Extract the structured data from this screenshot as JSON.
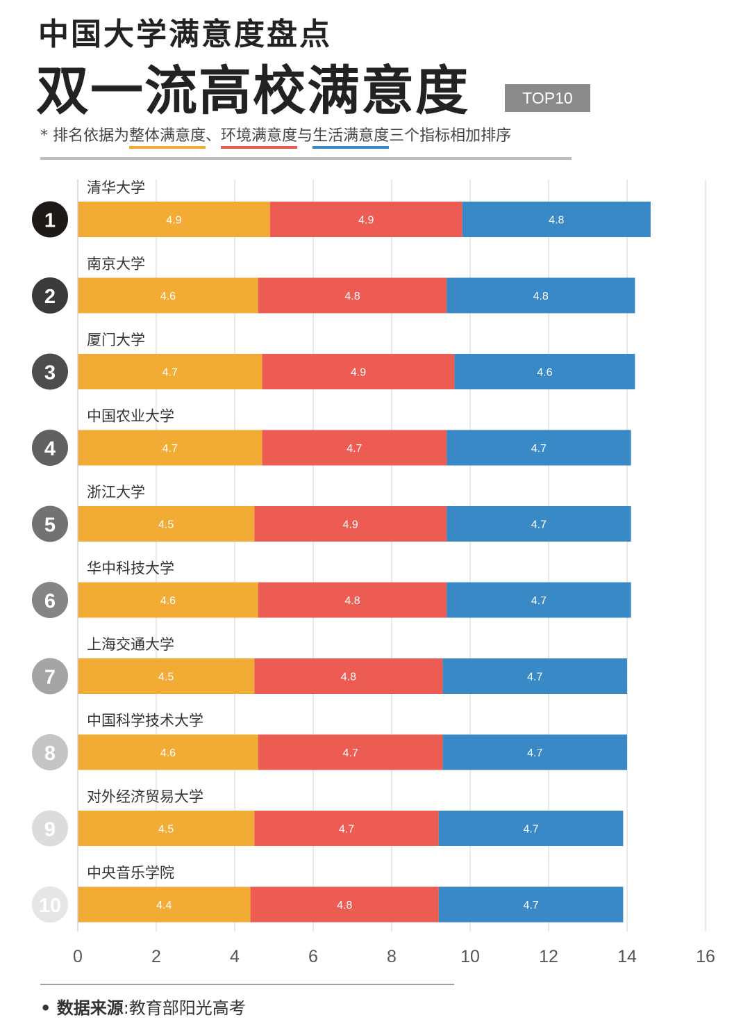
{
  "header": {
    "kicker": "中国大学满意度盘点",
    "title": "双一流高校满意度",
    "badge": "TOP10",
    "note_prefix": "* 排名依据为",
    "note_m1": "整体满意度",
    "note_sep1": "、",
    "note_m2": "环境满意度",
    "note_sep2": "与",
    "note_m3": "生活满意度",
    "note_suffix": "三个指标相加排序"
  },
  "colors": {
    "overall": "#f2ab35",
    "environment": "#ec5c53",
    "life": "#3889c6",
    "grid": "#e2e2e2",
    "axis": "#555555",
    "rank_circles": [
      "#1f1a17",
      "#3a3a3a",
      "#4d4d4d",
      "#606060",
      "#727272",
      "#858585",
      "#a4a4a4",
      "#c4c4c4",
      "#dcdcdc",
      "#e6e6e6"
    ]
  },
  "chart_data": {
    "type": "bar",
    "orientation": "horizontal",
    "stacked": true,
    "categories": [
      "清华大学",
      "南京大学",
      "厦门大学",
      "中国农业大学",
      "浙江大学",
      "华中科技大学",
      "上海交通大学",
      "中国科学技术大学",
      "对外经济贸易大学",
      "中央音乐学院"
    ],
    "ranks": [
      "1",
      "2",
      "3",
      "4",
      "5",
      "6",
      "7",
      "8",
      "9",
      "10"
    ],
    "series": [
      {
        "name": "整体满意度",
        "values": [
          4.9,
          4.6,
          4.7,
          4.7,
          4.5,
          4.6,
          4.5,
          4.6,
          4.5,
          4.4
        ]
      },
      {
        "name": "环境满意度",
        "values": [
          4.9,
          4.8,
          4.9,
          4.7,
          4.9,
          4.8,
          4.8,
          4.7,
          4.7,
          4.8
        ]
      },
      {
        "name": "生活满意度",
        "values": [
          4.8,
          4.8,
          4.6,
          4.7,
          4.7,
          4.7,
          4.7,
          4.7,
          4.7,
          4.7
        ]
      }
    ],
    "xlim": [
      0,
      16
    ],
    "xticks": [
      0,
      2,
      4,
      6,
      8,
      10,
      12,
      14,
      16
    ],
    "grid": true
  },
  "footer": {
    "source_label": "• 数据来源",
    "source_sep": ":",
    "source_value": "教育部阳光高考"
  }
}
